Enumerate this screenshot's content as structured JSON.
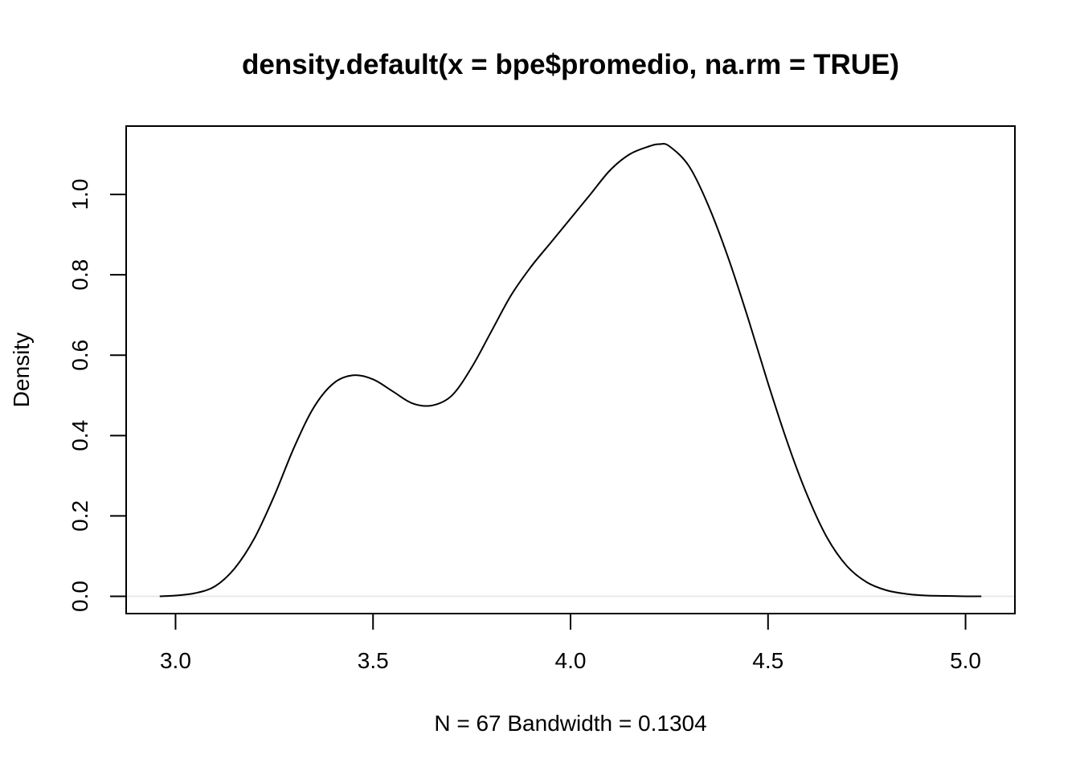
{
  "chart_data": {
    "type": "line",
    "title": "density.default(x = bpe$promedio, na.rm = TRUE)",
    "xlabel": "N = 67   Bandwidth = 0.1304",
    "ylabel": "Density",
    "xlim": [
      2.875,
      5.125
    ],
    "ylim": [
      -0.043,
      1.17
    ],
    "x_ticks": [
      3.0,
      3.5,
      4.0,
      4.5,
      5.0
    ],
    "x_tick_labels": [
      "3.0",
      "3.5",
      "4.0",
      "4.5",
      "5.0"
    ],
    "y_ticks": [
      0.0,
      0.2,
      0.4,
      0.6,
      0.8,
      1.0
    ],
    "y_tick_labels": [
      "0.0",
      "0.2",
      "0.4",
      "0.6",
      "0.8",
      "1.0"
    ],
    "zero_line": true,
    "grid": false,
    "series": [
      {
        "x": [
          2.96,
          3.0,
          3.05,
          3.1,
          3.15,
          3.2,
          3.25,
          3.3,
          3.35,
          3.4,
          3.45,
          3.5,
          3.55,
          3.6,
          3.65,
          3.7,
          3.75,
          3.8,
          3.85,
          3.9,
          3.95,
          4.0,
          4.05,
          4.1,
          4.15,
          4.2,
          4.225,
          4.25,
          4.3,
          4.35,
          4.4,
          4.45,
          4.5,
          4.55,
          4.6,
          4.65,
          4.7,
          4.75,
          4.8,
          4.85,
          4.9,
          4.95,
          5.0,
          5.04
        ],
        "y": [
          0.0,
          0.002,
          0.008,
          0.025,
          0.07,
          0.145,
          0.25,
          0.37,
          0.47,
          0.53,
          0.55,
          0.54,
          0.51,
          0.48,
          0.475,
          0.5,
          0.57,
          0.66,
          0.75,
          0.82,
          0.88,
          0.94,
          1.0,
          1.06,
          1.1,
          1.12,
          1.125,
          1.12,
          1.07,
          0.97,
          0.84,
          0.69,
          0.53,
          0.38,
          0.25,
          0.145,
          0.075,
          0.035,
          0.015,
          0.006,
          0.002,
          0.001,
          0.0,
          0.0
        ]
      }
    ]
  }
}
